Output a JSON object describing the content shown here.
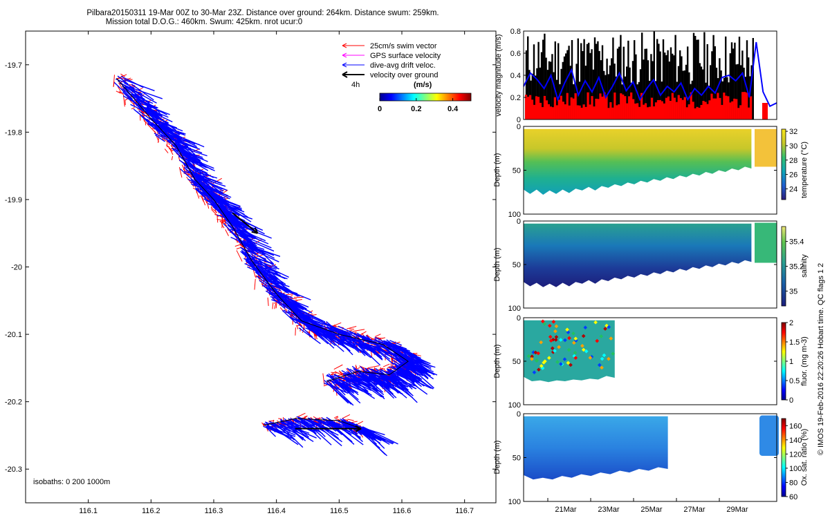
{
  "title_line1": "Pilbara20150311 19-Mar 00Z to 30-Mar 23Z. Distance over ground: 264km. Distance swum: 259km.",
  "title_line2": "Mission total D.O.G.: 460km. Swum: 425km. nrot ucur:0",
  "footer_text": "© IMOS 19-Feb-2016 22:20:26 Hobart time. QC flags 1  2",
  "colors": {
    "swim": "#ff0000",
    "gps": "#ff00ff",
    "drift": "#0000ff",
    "ground": "#000000"
  },
  "chart_data": [
    {
      "type": "map",
      "legend": {
        "items": [
          "25cm/s swim vector",
          "GPS surface velocity",
          "dive-avg drift veloc.",
          "velocity over ground"
        ],
        "time_scale_label": "4h",
        "colorbar_label": "(m/s)",
        "colorbar_ticks": [
          "0",
          "0.2",
          "0.4"
        ],
        "colorbar_range": [
          0,
          0.5
        ],
        "placement": "top-right"
      },
      "xlim": [
        116.0,
        116.75
      ],
      "ylim": [
        -20.35,
        -19.65
      ],
      "xticks": [
        "116.1",
        "116.2",
        "116.3",
        "116.4",
        "116.5",
        "116.6",
        "116.7"
      ],
      "yticks": [
        "-19.7",
        "-19.8",
        "-19.9",
        "-20",
        "-20.1",
        "-20.2",
        "-20.3"
      ],
      "isobaths_note": "isobaths: 0   200  1000m",
      "track": [
        [
          116.145,
          -19.72
        ],
        [
          116.2,
          -19.78
        ],
        [
          116.24,
          -19.82
        ],
        [
          116.27,
          -19.87
        ],
        [
          116.3,
          -19.9
        ],
        [
          116.33,
          -19.94
        ],
        [
          116.36,
          -19.99
        ],
        [
          116.4,
          -20.04
        ],
        [
          116.44,
          -20.08
        ],
        [
          116.5,
          -20.1
        ],
        [
          116.57,
          -20.115
        ],
        [
          116.61,
          -20.14
        ],
        [
          116.58,
          -20.16
        ],
        [
          116.53,
          -20.155
        ],
        [
          116.48,
          -20.17
        ]
      ],
      "track2": [
        [
          116.38,
          -20.235
        ],
        [
          116.43,
          -20.225
        ],
        [
          116.5,
          -20.228
        ],
        [
          116.535,
          -20.24
        ]
      ],
      "arrows": [
        [
          116.33,
          -19.92,
          116.37,
          -19.95
        ],
        [
          116.43,
          -20.24,
          116.535,
          -20.24
        ]
      ]
    },
    {
      "type": "line",
      "ylabel": "velocity magnitude (m/s)",
      "ylim": [
        0,
        0.8
      ],
      "yticks": [
        "0",
        "0.2",
        "0.4",
        "0.6",
        "0.8"
      ],
      "series": [
        {
          "values": [
            0.3,
            0.42,
            0.36,
            0.28,
            0.4,
            0.18,
            0.33,
            0.45,
            0.22,
            0.35,
            0.25,
            0.38,
            0.2,
            0.3,
            0.42,
            0.26,
            0.34,
            0.18,
            0.28,
            0.36,
            0.22,
            0.3,
            0.25,
            0.33,
            0.18,
            0.28,
            0.22,
            0.3,
            0.24,
            0.38,
            0.4,
            0.35,
            0.42,
            0.2,
            0.7,
            0.25,
            0.12,
            0.15
          ]
        }
      ]
    },
    {
      "type": "heatmap",
      "ylabel": "Depth (m)",
      "ylim": [
        100,
        0
      ],
      "yticks": [
        "0",
        "50",
        "100"
      ],
      "colorbar_label": "temperature (°C)",
      "colorbar_ticks": [
        "24",
        "26",
        "28",
        "30",
        "32"
      ],
      "colorbar_range": [
        22.5,
        32.3
      ],
      "bottom_depth": [
        72,
        74,
        72,
        75,
        73,
        74,
        72,
        73,
        71,
        70,
        69,
        70,
        68,
        67,
        66,
        65,
        64,
        63,
        62,
        61,
        60,
        59,
        58,
        57,
        56,
        55,
        54,
        53,
        52,
        51,
        50,
        49,
        48,
        47,
        46,
        45
      ]
    },
    {
      "type": "heatmap",
      "ylabel": "Depth (m)",
      "ylim": [
        100,
        0
      ],
      "yticks": [
        "0",
        "50",
        "100"
      ],
      "colorbar_label": "salinity",
      "colorbar_ticks": [
        "35",
        "35.2",
        "35.4"
      ],
      "colorbar_range": [
        34.88,
        35.52
      ],
      "bottom_depth": [
        70,
        72,
        71,
        73,
        72,
        73,
        71,
        72,
        70,
        69,
        68,
        69,
        67,
        66,
        65,
        64,
        63,
        62,
        61,
        60,
        59,
        58,
        57,
        56,
        55,
        54,
        53,
        52,
        51,
        50,
        49,
        48,
        47,
        46,
        45,
        44
      ]
    },
    {
      "type": "heatmap",
      "ylabel": "Depth (m)",
      "ylim": [
        100,
        0
      ],
      "yticks": [
        "0",
        "50",
        "100"
      ],
      "colorbar_label": "fluor. (mg m-3)",
      "colorbar_ticks": [
        "0",
        "0.5",
        "1",
        "1.5",
        "2"
      ],
      "colorbar_range": [
        0,
        2
      ],
      "bottom_depth": [
        68,
        70,
        72,
        71,
        72,
        70,
        71,
        69,
        70,
        68,
        67,
        66
      ]
    },
    {
      "type": "heatmap",
      "ylabel": "Depth (m)",
      "ylim": [
        100,
        0
      ],
      "yticks": [
        "0",
        "50",
        "100"
      ],
      "xticks": [
        "21Mar",
        "23Mar",
        "25Mar",
        "27Mar",
        "29Mar"
      ],
      "colorbar_label": "Ox. sat. ratio (%)",
      "colorbar_ticks": [
        "60",
        "80",
        "100",
        "120",
        "140",
        "160"
      ],
      "colorbar_range": [
        60,
        170
      ],
      "bottom_depth": [
        70,
        72,
        73,
        72,
        71,
        70,
        69,
        68,
        67,
        66,
        65,
        64,
        63,
        62,
        61,
        60
      ]
    }
  ]
}
